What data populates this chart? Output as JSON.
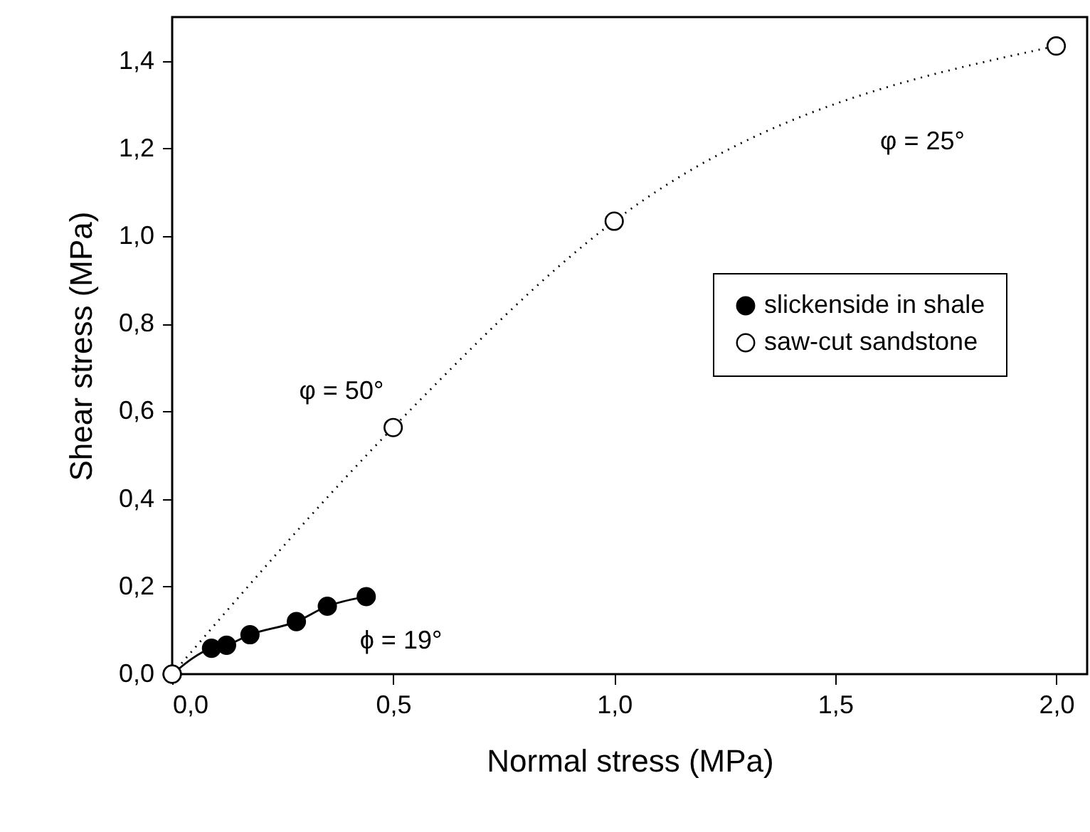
{
  "chart_data": {
    "type": "line",
    "xlabel": "Normal stress (MPa)",
    "ylabel": "Shear stress (MPa)",
    "xlim": [
      0,
      2.07
    ],
    "ylim": [
      0,
      1.5
    ],
    "xticks": [
      {
        "value": 0,
        "label": "0,0"
      },
      {
        "value": 0.5,
        "label": "0,5"
      },
      {
        "value": 1,
        "label": "1,0"
      },
      {
        "value": 1.5,
        "label": "1,5"
      },
      {
        "value": 2,
        "label": "2,0"
      }
    ],
    "yticks": [
      {
        "value": 0,
        "label": "0,0"
      },
      {
        "value": 0.2,
        "label": "0,2"
      },
      {
        "value": 0.4,
        "label": "0,4"
      },
      {
        "value": 0.6,
        "label": "0,6"
      },
      {
        "value": 0.8,
        "label": "0,8"
      },
      {
        "value": 1,
        "label": "1,0"
      },
      {
        "value": 1.2,
        "label": "1,2"
      },
      {
        "value": 1.4,
        "label": "1,4"
      }
    ],
    "marker": "circle",
    "legend": "right",
    "grid": false,
    "series": [
      {
        "name": "slickenside in shale",
        "color": "#000000",
        "line_style": "solid",
        "x": [
          0,
          0.089,
          0.123,
          0.176,
          0.281,
          0.351,
          0.439
        ],
        "values": [
          0,
          0.059,
          0.066,
          0.09,
          0.12,
          0.155,
          0.177
        ]
      },
      {
        "name": "saw-cut sandstone",
        "color": "#000000",
        "line_style": "dotted",
        "x": [
          0,
          0.5,
          1,
          2
        ],
        "values": [
          0,
          0.563,
          1.034,
          1.434
        ]
      }
    ],
    "annotations": [
      "φ = 50°",
      "φ = 25°",
      "ϕ = 19°"
    ]
  }
}
